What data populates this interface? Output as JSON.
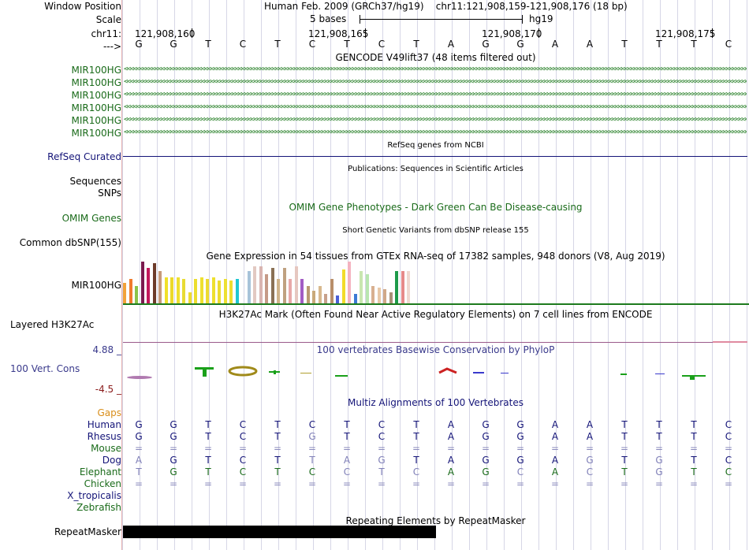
{
  "header": {
    "window_position_label": "Window Position",
    "scale_label": "Scale",
    "chrom_label": "chr11:",
    "arrow_label": "--->",
    "assembly_text": "Human Feb. 2009 (GRCh37/hg19)    chr11:121,908,159-121,908,176 (18 bp)",
    "scale_bar_text": "5 bases",
    "db_text": "hg19",
    "ticks": [
      "121,908,160",
      "121,908,165",
      "121,908,170",
      "121,908,175"
    ]
  },
  "sequence": [
    "G",
    "G",
    "T",
    "C",
    "T",
    "C",
    "T",
    "C",
    "T",
    "A",
    "G",
    "G",
    "A",
    "A",
    "T",
    "T",
    "T",
    "C"
  ],
  "gencode": {
    "title": "GENCODE V49lift37 (48 items filtered out)",
    "items": [
      "MIR100HG",
      "MIR100HG",
      "MIR100HG",
      "MIR100HG",
      "MIR100HG",
      "MIR100HG"
    ]
  },
  "refseq": {
    "title": "RefSeq genes from NCBI",
    "label": "RefSeq Curated"
  },
  "publications": {
    "title": "Publications: Sequences in Scientific Articles",
    "labels": [
      "Sequences",
      "SNPs"
    ]
  },
  "omim": {
    "title": "OMIM Gene Phenotypes - Dark Green Can Be Disease-causing",
    "label": "OMIM Genes"
  },
  "dbsnp": {
    "title": "Short Genetic Variants from dbSNP release 155",
    "label": "Common dbSNP(155)"
  },
  "gtex": {
    "title": "Gene Expression in 54 tissues from GTEx RNA-seq of 17382 samples, 948 donors (V8, Aug 2019)",
    "label": "MIR100HG",
    "bars": [
      {
        "value": 26,
        "color": "#f2a23a"
      },
      {
        "value": 30,
        "color": "#f07b2c"
      },
      {
        "value": 22,
        "color": "#8bc34a"
      },
      {
        "value": 52,
        "color": "#7a1a4e"
      },
      {
        "value": 44,
        "color": "#c2185b"
      },
      {
        "value": 50,
        "color": "#6d3b2a"
      },
      {
        "value": 40,
        "color": "#c79a7a"
      },
      {
        "value": 32,
        "color": "#f0e02a"
      },
      {
        "value": 32,
        "color": "#ecd92a"
      },
      {
        "value": 32,
        "color": "#eee030"
      },
      {
        "value": 30,
        "color": "#e8dc34"
      },
      {
        "value": 14,
        "color": "#eedc30"
      },
      {
        "value": 30,
        "color": "#ecde30"
      },
      {
        "value": 32,
        "color": "#eee030"
      },
      {
        "value": 30,
        "color": "#ecdb30"
      },
      {
        "value": 32,
        "color": "#eee02e"
      },
      {
        "value": 28,
        "color": "#ecdc30"
      },
      {
        "value": 30,
        "color": "#ede032"
      },
      {
        "value": 28,
        "color": "#eedd30"
      },
      {
        "value": 30,
        "color": "#20c7d1"
      },
      {
        "value": 0,
        "color": "#ffffff"
      },
      {
        "value": 40,
        "color": "#a7c3d9"
      },
      {
        "value": 46,
        "color": "#e2c9c2"
      },
      {
        "value": 46,
        "color": "#d9b5b1"
      },
      {
        "value": 36,
        "color": "#c59a87"
      },
      {
        "value": 44,
        "color": "#8a7055"
      },
      {
        "value": 30,
        "color": "#d0b38a"
      },
      {
        "value": 44,
        "color": "#bfa180"
      },
      {
        "value": 30,
        "color": "#e8a8a8"
      },
      {
        "value": 46,
        "color": "#e6c7c0"
      },
      {
        "value": 30,
        "color": "#a25cc4"
      },
      {
        "value": 22,
        "color": "#b99a72"
      },
      {
        "value": 16,
        "color": "#c9a97a"
      },
      {
        "value": 22,
        "color": "#d8b88e"
      },
      {
        "value": 12,
        "color": "#c7a18c"
      },
      {
        "value": 30,
        "color": "#b88e6a"
      },
      {
        "value": 10,
        "color": "#4b5fd6"
      },
      {
        "value": 42,
        "color": "#f2dc2a"
      },
      {
        "value": 52,
        "color": "#f4b3c0"
      },
      {
        "value": 12,
        "color": "#3c7ad4"
      },
      {
        "value": 40,
        "color": "#c9e6b0"
      },
      {
        "value": 36,
        "color": "#b9e6b0"
      },
      {
        "value": 22,
        "color": "#d8b090"
      },
      {
        "value": 20,
        "color": "#e8c8a8"
      },
      {
        "value": 18,
        "color": "#d0a888"
      },
      {
        "value": 14,
        "color": "#a89078"
      },
      {
        "value": 40,
        "color": "#1d9a4a"
      },
      {
        "value": 40,
        "color": "#e68a8a"
      },
      {
        "value": 40,
        "color": "#efd8d0"
      }
    ]
  },
  "h3k27ac": {
    "title": "H3K27Ac Mark (Often Found Near Active Regulatory Elements) on 7 cell lines from ENCODE",
    "label": "Layered H3K27Ac"
  },
  "cons": {
    "title": "100 vertebrates Basewise Conservation by PhyloP",
    "label": "100 Vert. Cons",
    "max_label": "4.88 _",
    "min_label": "-4.5 _"
  },
  "multiz": {
    "title": "Multiz Alignments of 100 Vertebrates",
    "gaps_label": "Gaps",
    "species": [
      {
        "name": "Human",
        "color": "#141478",
        "bases": [
          "G",
          "G",
          "T",
          "C",
          "T",
          "C",
          "T",
          "C",
          "T",
          "A",
          "G",
          "G",
          "A",
          "A",
          "T",
          "T",
          "T",
          "C"
        ]
      },
      {
        "name": "Rhesus",
        "color": "#141478",
        "bases": [
          "G",
          "G",
          "T",
          "C",
          "T",
          "G",
          "T",
          "C",
          "T",
          "A",
          "G",
          "G",
          "A",
          "A",
          "T",
          "T",
          "T",
          "C"
        ]
      },
      {
        "name": "Mouse",
        "color": "#1a6b1a",
        "bases": [
          "=",
          "=",
          "=",
          "=",
          "=",
          "=",
          "=",
          "=",
          "=",
          "=",
          "=",
          "=",
          "=",
          "=",
          "=",
          "=",
          "=",
          "="
        ]
      },
      {
        "name": "Dog",
        "color": "#141478",
        "bases": [
          "A",
          "G",
          "T",
          "C",
          "T",
          "T",
          "A",
          "G",
          "T",
          "A",
          "G",
          "G",
          "A",
          "G",
          "T",
          "G",
          "T",
          "C"
        ]
      },
      {
        "name": "Elephant",
        "color": "#1a6b1a",
        "bases": [
          "T",
          "G",
          "T",
          "C",
          "T",
          "C",
          "C",
          "T",
          "C",
          "A",
          "G",
          "C",
          "A",
          "C",
          "T",
          "G",
          "T",
          "C"
        ]
      },
      {
        "name": "Chicken",
        "color": "#1a6b1a",
        "bases": [
          "=",
          "=",
          "=",
          "=",
          "=",
          "=",
          "=",
          "=",
          "=",
          "=",
          "=",
          "=",
          "=",
          "=",
          "=",
          "=",
          "=",
          "="
        ]
      },
      {
        "name": "X_tropicalis",
        "color": "#141478",
        "bases": []
      },
      {
        "name": "Zebrafish",
        "color": "#1a6b1a",
        "bases": []
      }
    ]
  },
  "repeatmasker": {
    "title": "Repeating Elements by RepeatMasker",
    "label": "RepeatMasker"
  },
  "colors": {
    "label_blue": "#141478",
    "label_green": "#1a6b1a",
    "gap_orange": "#d98e1a",
    "cons_blue": "#3a3a8c",
    "cons_red": "#8a1a1a"
  }
}
